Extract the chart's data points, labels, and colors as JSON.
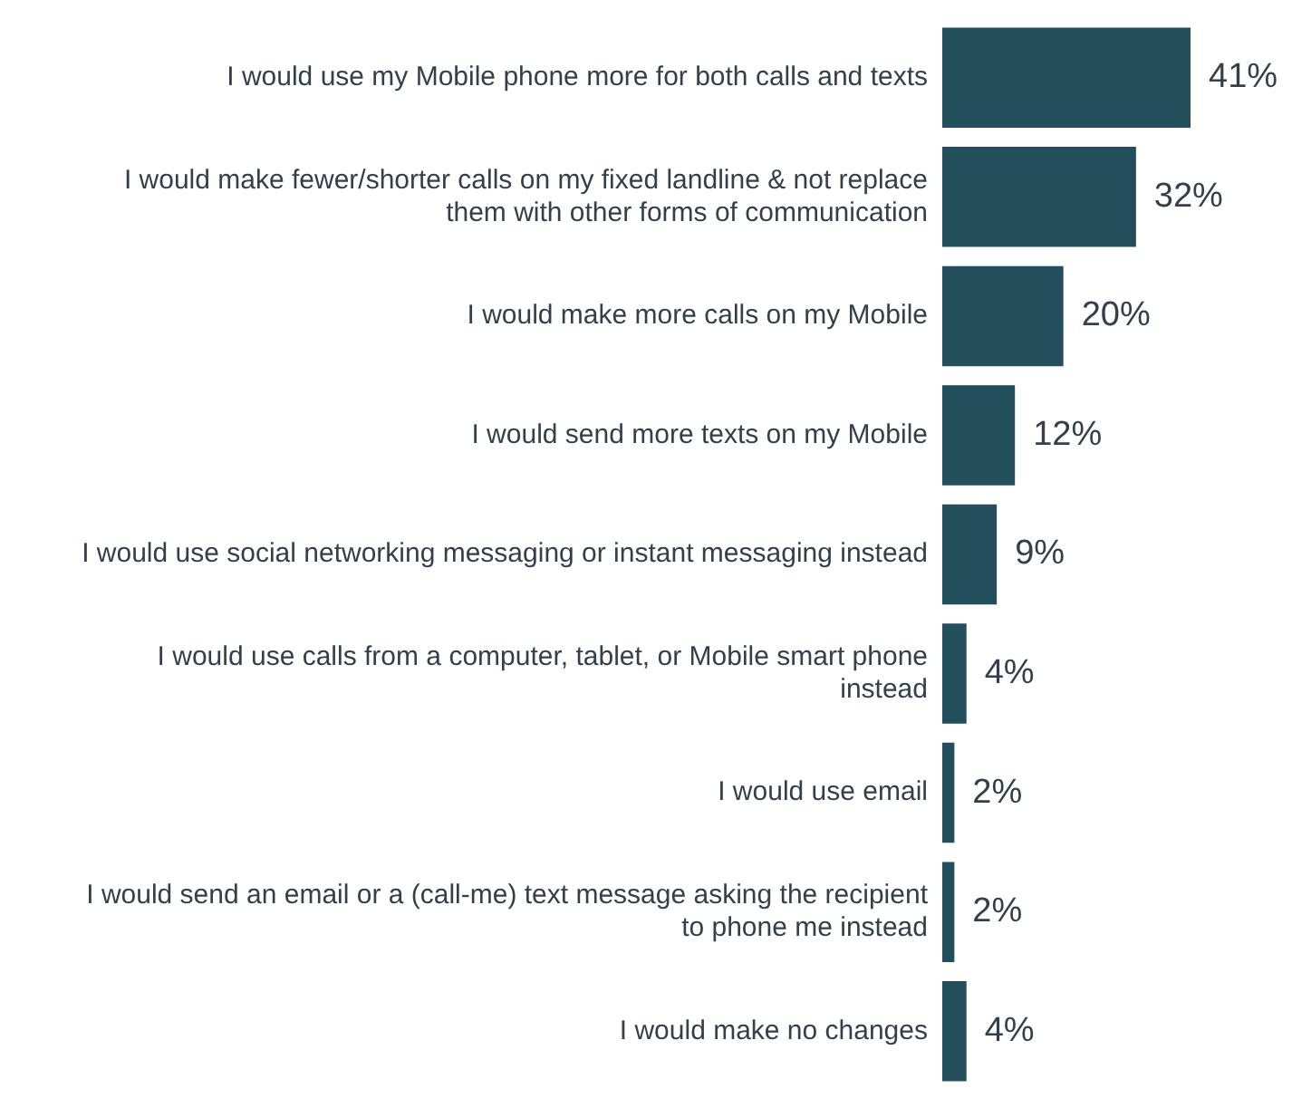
{
  "chart_data": {
    "type": "bar",
    "orientation": "horizontal",
    "categories": [
      "I would use my Mobile phone more for both calls and texts",
      "I would make fewer/shorter calls on my fixed landline & not replace them with other forms of communication",
      "I would make more calls on my Mobile",
      "I would send more texts on my Mobile",
      "I would use social networking messaging or instant messaging instead",
      "I would use calls from a computer, tablet, or Mobile smart phone instead",
      "I would use email",
      "I would send an email or a (call-me) text message asking the recipient to phone me instead",
      "I would make no changes"
    ],
    "values": [
      41,
      32,
      20,
      12,
      9,
      4,
      2,
      2,
      4
    ],
    "value_labels": [
      "41%",
      "32%",
      "20%",
      "12%",
      "9%",
      "4%",
      "2%",
      "2%",
      "4%"
    ],
    "color": "#234e5c",
    "legend": false
  }
}
